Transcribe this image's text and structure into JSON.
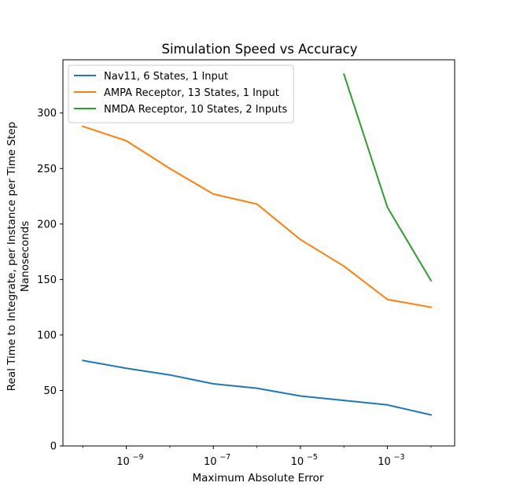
{
  "chart_data": {
    "type": "line",
    "title": "Simulation Speed vs Accuracy",
    "xlabel": "Maximum Absolute Error",
    "ylabel_lines": [
      "Real Time to Integrate, per Instance per Time Step",
      "Nanoseconds"
    ],
    "x_scale": "log",
    "xlim": [
      3.5e-11,
      0.035
    ],
    "ylim": [
      0,
      348
    ],
    "x_ticks": [
      {
        "value": 1e-09,
        "base": "10",
        "exp": "−9"
      },
      {
        "value": 1e-07,
        "base": "10",
        "exp": "−7"
      },
      {
        "value": 1e-05,
        "base": "10",
        "exp": "−5"
      },
      {
        "value": 0.001,
        "base": "10",
        "exp": "−3"
      }
    ],
    "y_ticks": [
      0,
      50,
      100,
      150,
      200,
      250,
      300
    ],
    "grid": false,
    "legend_position": "upper-left",
    "series": [
      {
        "name": "Nav11, 6 States, 1 Input",
        "color": "#1f77b4",
        "x": [
          1e-10,
          1e-09,
          1e-08,
          1e-07,
          1e-06,
          1e-05,
          0.0001,
          0.001,
          0.01
        ],
        "y": [
          77,
          70,
          64,
          56,
          52,
          45,
          41,
          37,
          28
        ]
      },
      {
        "name": "AMPA Receptor, 13 States, 1 Input",
        "color": "#ff7f0e",
        "x": [
          1e-10,
          1e-09,
          1e-08,
          1e-07,
          1e-06,
          1e-05,
          0.0001,
          0.001,
          0.01
        ],
        "y": [
          288,
          275,
          250,
          227,
          218,
          186,
          162,
          132,
          125
        ]
      },
      {
        "name": "NMDA Receptor, 10 States, 2 Inputs",
        "color": "#2ca02c",
        "x": [
          0.0001,
          0.001,
          0.01
        ],
        "y": [
          335,
          215,
          149
        ]
      }
    ]
  }
}
